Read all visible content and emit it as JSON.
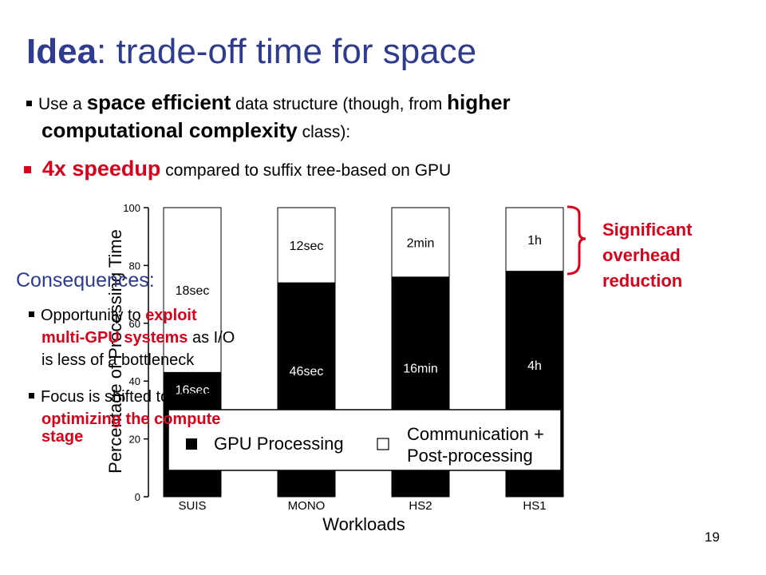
{
  "slide": {
    "title_bold": "Idea",
    "title_rest": ": trade-off time for space",
    "bullet1": {
      "pre": "Use a ",
      "bold1": "space efficient",
      "mid": " data structure (though, from ",
      "bold2": "higher",
      "line2_bold": "computational complexity",
      "line2_rest": " class):"
    },
    "bullet2": {
      "bold": "4x speedup",
      "rest": " compared to suffix tree-based on GPU"
    },
    "brace_note": [
      "Significant",
      "overhead",
      "reduction"
    ],
    "consequences": {
      "heading": "Consequences:",
      "item1": {
        "pre": "Opportunity to ",
        "red1": "exploit",
        "red2": "multi-GPU systems",
        "post1": " as I/O",
        "line3": "is less of a bottleneck"
      },
      "item2": {
        "pre": "Focus is shifted towards",
        "red1": "optimizing the compute",
        "red2": "stage"
      }
    },
    "page_number": "19"
  },
  "colors": {
    "title": "#2e3b8f",
    "accent_red": "#d9001b",
    "gpu_bar": "#000000",
    "comm_bar": "#ffffff"
  },
  "chart_data": {
    "type": "bar",
    "stacked": true,
    "categories": [
      "SUIS",
      "MONO",
      "HS2",
      "HS1"
    ],
    "series": [
      {
        "name": "GPU Processing",
        "values": [
          43,
          74,
          76,
          78
        ],
        "labels": [
          "16sec",
          "46sec",
          "16min",
          "4h"
        ],
        "color": "#000000"
      },
      {
        "name": "Communication + Post-processing",
        "values": [
          57,
          26,
          24,
          22
        ],
        "labels": [
          "18sec",
          "12sec",
          "2min",
          "1h"
        ],
        "color": "#ffffff"
      }
    ],
    "xlabel": "Workloads",
    "ylabel": "Percentage of Processing Time",
    "ylim": [
      0,
      100
    ],
    "yticks": [
      0,
      20,
      40,
      60,
      80,
      100
    ],
    "legend": {
      "gpu": "GPU Processing",
      "comm_line1": "Communication +",
      "comm_line2": "Post-processing",
      "placement": "bottom-center"
    }
  }
}
